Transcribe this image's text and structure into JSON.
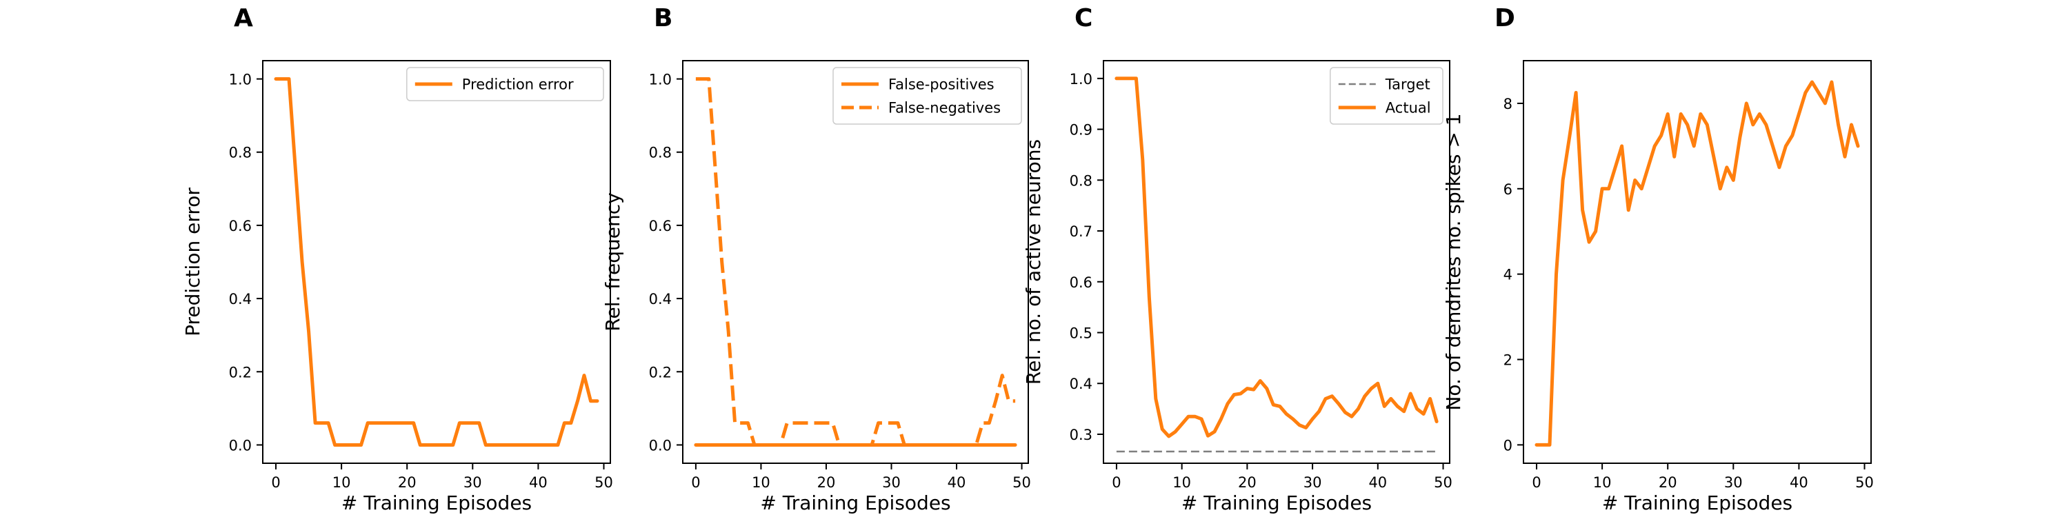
{
  "colors": {
    "series": "#ff7f0e",
    "target": "#7f7f7f",
    "axis": "#000000"
  },
  "chart_data": [
    {
      "panel": "A",
      "type": "line",
      "xlabel": "# Training Episodes",
      "ylabel": "Prediction error",
      "xlim": [
        -2,
        51
      ],
      "ylim": [
        -0.05,
        1.05
      ],
      "xticks": [
        0,
        10,
        20,
        30,
        40,
        50
      ],
      "yticks": [
        0.0,
        0.2,
        0.4,
        0.6,
        0.8,
        1.0
      ],
      "ytick_format": "1",
      "legend": "top-right",
      "series": [
        {
          "name": "Prediction error",
          "style": "solid",
          "color": "#ff7f0e",
          "x": [
            0,
            1,
            2,
            3,
            4,
            5,
            6,
            7,
            8,
            9,
            10,
            11,
            12,
            13,
            14,
            15,
            16,
            17,
            18,
            19,
            20,
            21,
            22,
            23,
            24,
            25,
            26,
            27,
            28,
            29,
            30,
            31,
            32,
            33,
            34,
            35,
            36,
            37,
            38,
            39,
            40,
            41,
            42,
            43,
            44,
            45,
            46,
            47,
            48,
            49
          ],
          "y": [
            1.0,
            1.0,
            1.0,
            0.75,
            0.5,
            0.31,
            0.06,
            0.06,
            0.06,
            0.0,
            0.0,
            0.0,
            0.0,
            0.0,
            0.06,
            0.06,
            0.06,
            0.06,
            0.06,
            0.06,
            0.06,
            0.06,
            0.0,
            0.0,
            0.0,
            0.0,
            0.0,
            0.0,
            0.06,
            0.06,
            0.06,
            0.06,
            0.0,
            0.0,
            0.0,
            0.0,
            0.0,
            0.0,
            0.0,
            0.0,
            0.0,
            0.0,
            0.0,
            0.0,
            0.06,
            0.06,
            0.12,
            0.19,
            0.12,
            0.12
          ]
        }
      ]
    },
    {
      "panel": "B",
      "type": "line",
      "xlabel": "# Training Episodes",
      "ylabel": "Rel. frequency",
      "xlim": [
        -2,
        51
      ],
      "ylim": [
        -0.05,
        1.05
      ],
      "xticks": [
        0,
        10,
        20,
        30,
        40,
        50
      ],
      "yticks": [
        0.0,
        0.2,
        0.4,
        0.6,
        0.8,
        1.0
      ],
      "ytick_format": "1",
      "legend": "top-right",
      "series": [
        {
          "name": "False-positives",
          "style": "solid",
          "color": "#ff7f0e",
          "x": [
            0,
            49
          ],
          "y": [
            0.0,
            0.0
          ]
        },
        {
          "name": "False-negatives",
          "style": "dashed",
          "color": "#ff7f0e",
          "x": [
            0,
            1,
            2,
            3,
            4,
            5,
            6,
            7,
            8,
            9,
            10,
            11,
            12,
            13,
            14,
            15,
            16,
            17,
            18,
            19,
            20,
            21,
            22,
            23,
            24,
            25,
            26,
            27,
            28,
            29,
            30,
            31,
            32,
            33,
            34,
            35,
            36,
            37,
            38,
            39,
            40,
            41,
            42,
            43,
            44,
            45,
            46,
            47,
            48,
            49
          ],
          "y": [
            1.0,
            1.0,
            1.0,
            0.75,
            0.5,
            0.31,
            0.06,
            0.06,
            0.06,
            0.0,
            0.0,
            0.0,
            0.0,
            0.0,
            0.06,
            0.06,
            0.06,
            0.06,
            0.06,
            0.06,
            0.06,
            0.06,
            0.0,
            0.0,
            0.0,
            0.0,
            0.0,
            0.0,
            0.06,
            0.06,
            0.06,
            0.06,
            0.0,
            0.0,
            0.0,
            0.0,
            0.0,
            0.0,
            0.0,
            0.0,
            0.0,
            0.0,
            0.0,
            0.0,
            0.06,
            0.06,
            0.12,
            0.19,
            0.12,
            0.12
          ]
        }
      ]
    },
    {
      "panel": "C",
      "type": "line",
      "xlabel": "# Training Episodes",
      "ylabel": "Rel. no. of active neurons",
      "xlim": [
        -2,
        51
      ],
      "ylim": [
        0.243,
        1.035
      ],
      "xticks": [
        0,
        10,
        20,
        30,
        40,
        50
      ],
      "yticks": [
        0.3,
        0.4,
        0.5,
        0.6,
        0.7,
        0.8,
        0.9,
        1.0
      ],
      "ytick_format": "1",
      "legend": "top-right",
      "series": [
        {
          "name": "Target",
          "style": "dashed-thin",
          "color": "#7f7f7f",
          "x": [
            0,
            49
          ],
          "y": [
            0.266,
            0.266
          ]
        },
        {
          "name": "Actual",
          "style": "solid",
          "color": "#ff7f0e",
          "x": [
            0,
            1,
            2,
            3,
            4,
            5,
            6,
            7,
            8,
            9,
            10,
            11,
            12,
            13,
            14,
            15,
            16,
            17,
            18,
            19,
            20,
            21,
            22,
            23,
            24,
            25,
            26,
            27,
            28,
            29,
            30,
            31,
            32,
            33,
            34,
            35,
            36,
            37,
            38,
            39,
            40,
            41,
            42,
            43,
            44,
            45,
            46,
            47,
            48,
            49
          ],
          "y": [
            1.0,
            1.0,
            1.0,
            1.0,
            0.84,
            0.57,
            0.37,
            0.31,
            0.296,
            0.305,
            0.32,
            0.335,
            0.335,
            0.33,
            0.297,
            0.305,
            0.33,
            0.36,
            0.378,
            0.38,
            0.39,
            0.388,
            0.405,
            0.39,
            0.358,
            0.355,
            0.34,
            0.33,
            0.318,
            0.313,
            0.33,
            0.345,
            0.37,
            0.375,
            0.36,
            0.343,
            0.335,
            0.35,
            0.375,
            0.39,
            0.4,
            0.355,
            0.37,
            0.355,
            0.345,
            0.38,
            0.35,
            0.34,
            0.37,
            0.325
          ]
        }
      ]
    },
    {
      "panel": "D",
      "type": "line",
      "xlabel": "# Training Episodes",
      "ylabel": "No. of dendrites no. spikes > 1",
      "xlim": [
        -2,
        51
      ],
      "ylim": [
        -0.43,
        9.0
      ],
      "xticks": [
        0,
        10,
        20,
        30,
        40,
        50
      ],
      "yticks": [
        0,
        2,
        4,
        6,
        8
      ],
      "ytick_format": "0",
      "legend": "none",
      "series": [
        {
          "color": "#ff7f0e",
          "style": "solid",
          "x": [
            0,
            1,
            2,
            3,
            4,
            5,
            6,
            7,
            8,
            9,
            10,
            11,
            12,
            13,
            14,
            15,
            16,
            17,
            18,
            19,
            20,
            21,
            22,
            23,
            24,
            25,
            26,
            27,
            28,
            29,
            30,
            31,
            32,
            33,
            34,
            35,
            36,
            37,
            38,
            39,
            40,
            41,
            42,
            43,
            44,
            45,
            46,
            47,
            48,
            49
          ],
          "y": [
            0,
            0,
            0,
            4.0,
            6.2,
            7.2,
            8.25,
            5.5,
            4.75,
            5.0,
            6.0,
            6.0,
            6.5,
            7.0,
            5.5,
            6.2,
            6.0,
            6.5,
            7.0,
            7.25,
            7.75,
            6.75,
            7.75,
            7.5,
            7.0,
            7.75,
            7.5,
            6.75,
            6.0,
            6.5,
            6.2,
            7.2,
            8.0,
            7.5,
            7.75,
            7.5,
            7.0,
            6.5,
            7.0,
            7.25,
            7.75,
            8.25,
            8.5,
            8.25,
            8.0,
            8.5,
            7.5,
            6.75,
            7.5,
            7.0
          ]
        }
      ]
    }
  ]
}
